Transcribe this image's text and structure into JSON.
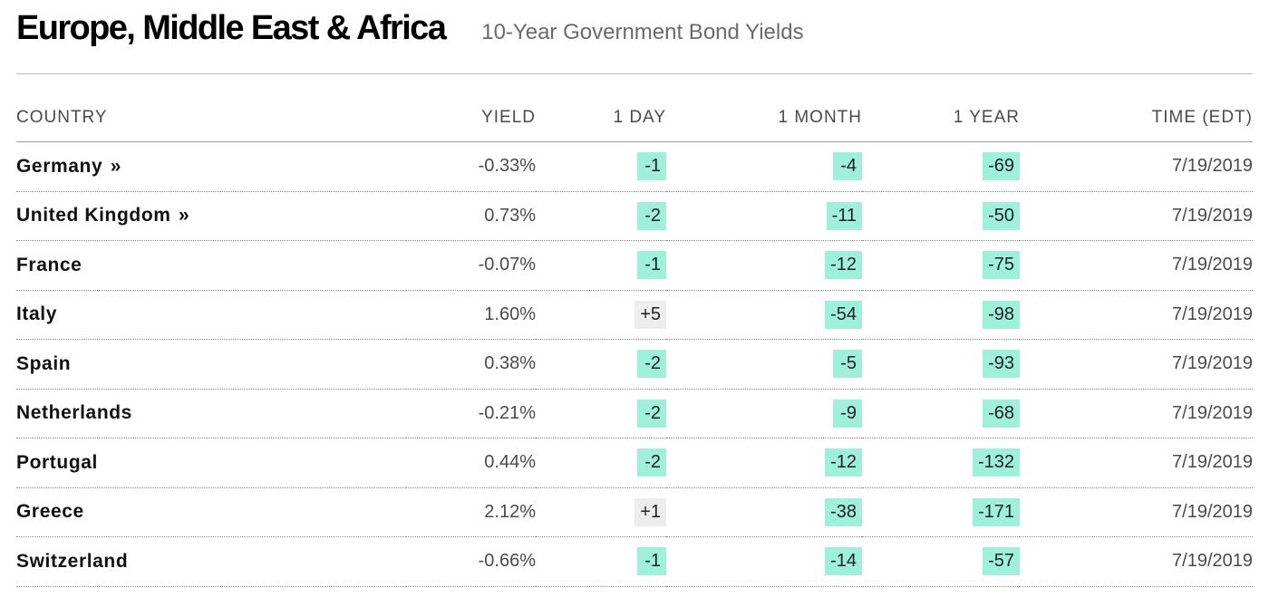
{
  "header": {
    "title": "Europe, Middle East & Africa",
    "subtitle": "10-Year Government Bond Yields"
  },
  "colors": {
    "negative_change_bg": "#9ef0d8",
    "positive_change_bg": "#ededed",
    "text_dark": "#111111",
    "text_muted": "#4a4a4a",
    "subtitle": "#6a6a6a"
  },
  "table": {
    "columns": {
      "country": "COUNTRY",
      "yield": "YIELD",
      "day": "1 DAY",
      "month": "1 MONTH",
      "year": "1 YEAR",
      "time": "TIME (EDT)"
    },
    "rows": [
      {
        "country": "Germany",
        "link": "»",
        "yield": "-0.33%",
        "day": "-1",
        "month": "-4",
        "year": "-69",
        "time": "7/19/2019"
      },
      {
        "country": "United Kingdom",
        "link": "»",
        "yield": "0.73%",
        "day": "-2",
        "month": "-11",
        "year": "-50",
        "time": "7/19/2019"
      },
      {
        "country": "France",
        "link": "",
        "yield": "-0.07%",
        "day": "-1",
        "month": "-12",
        "year": "-75",
        "time": "7/19/2019"
      },
      {
        "country": "Italy",
        "link": "",
        "yield": "1.60%",
        "day": "+5",
        "month": "-54",
        "year": "-98",
        "time": "7/19/2019"
      },
      {
        "country": "Spain",
        "link": "",
        "yield": "0.38%",
        "day": "-2",
        "month": "-5",
        "year": "-93",
        "time": "7/19/2019"
      },
      {
        "country": "Netherlands",
        "link": "",
        "yield": "-0.21%",
        "day": "-2",
        "month": "-9",
        "year": "-68",
        "time": "7/19/2019"
      },
      {
        "country": "Portugal",
        "link": "",
        "yield": "0.44%",
        "day": "-2",
        "month": "-12",
        "year": "-132",
        "time": "7/19/2019"
      },
      {
        "country": "Greece",
        "link": "",
        "yield": "2.12%",
        "day": "+1",
        "month": "-38",
        "year": "-171",
        "time": "7/19/2019"
      },
      {
        "country": "Switzerland",
        "link": "",
        "yield": "-0.66%",
        "day": "-1",
        "month": "-14",
        "year": "-57",
        "time": "7/19/2019"
      }
    ]
  }
}
